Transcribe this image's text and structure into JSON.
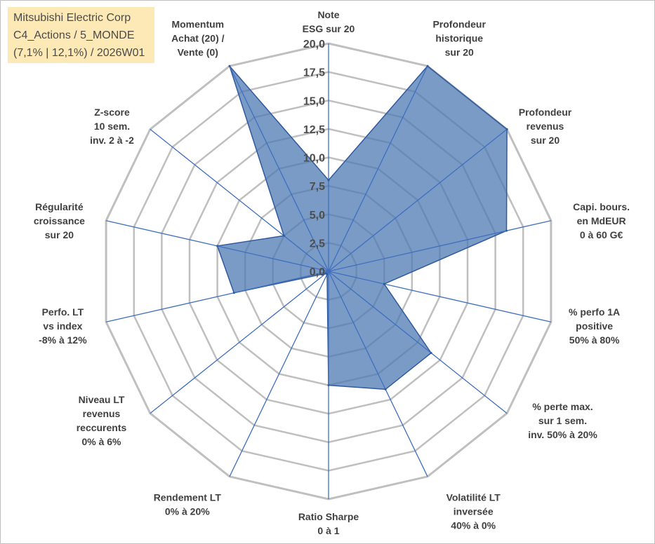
{
  "title_box": {
    "line1": "Mitsubishi Electric Corp",
    "line2": "C4_Actions / 5_MONDE",
    "line3": "(7,1% | 12,1%) / 2026W01"
  },
  "colors": {
    "fill": "#4f79b4",
    "stroke": "#2f5a9e",
    "grid": "#bfbfbf",
    "axis": "#3f6fbf"
  },
  "chart_data": {
    "type": "radar",
    "title": "",
    "rmin": 0,
    "rmax": 20,
    "grid": true,
    "tick_labels": [
      "0,0",
      "2,5",
      "5,0",
      "7,5",
      "10,0",
      "12,5",
      "15,0",
      "17,5",
      "20,0"
    ],
    "categories": [
      [
        "Note",
        "ESG sur 20"
      ],
      [
        "Profondeur",
        "historique",
        "sur 20"
      ],
      [
        "Profondeur",
        "revenus",
        "sur 20"
      ],
      [
        "Capi. bours.",
        "en MdEUR",
        "0 à 60 G€"
      ],
      [
        "% perfo 1A",
        "positive",
        "50% à 80%"
      ],
      [
        "% perte max.",
        "sur 1 sem.",
        "inv. 50% à 20%"
      ],
      [
        "Volatilité LT",
        "inversée",
        "40% à 0%"
      ],
      [
        "Ratio Sharpe",
        "0 à 1"
      ],
      [
        "Rendement LT",
        "0% à 20%"
      ],
      [
        "Niveau LT",
        "revenus",
        "reccurents",
        "0% à 6%"
      ],
      [
        "Perfo. LT",
        "vs index",
        "-8% à 12%"
      ],
      [
        "Régularité",
        "croissance",
        "sur 20"
      ],
      [
        "Z-score",
        "10 sem.",
        "inv. 2 à -2"
      ],
      [
        "Momentum",
        "Achat (20) /",
        "Vente (0)"
      ]
    ],
    "series": [
      {
        "values": [
          8.0,
          20.0,
          20.0,
          16.0,
          5.0,
          11.5,
          11.5,
          10.0,
          0.3,
          0.3,
          8.5,
          10.0,
          5.0,
          20.0
        ]
      }
    ]
  }
}
